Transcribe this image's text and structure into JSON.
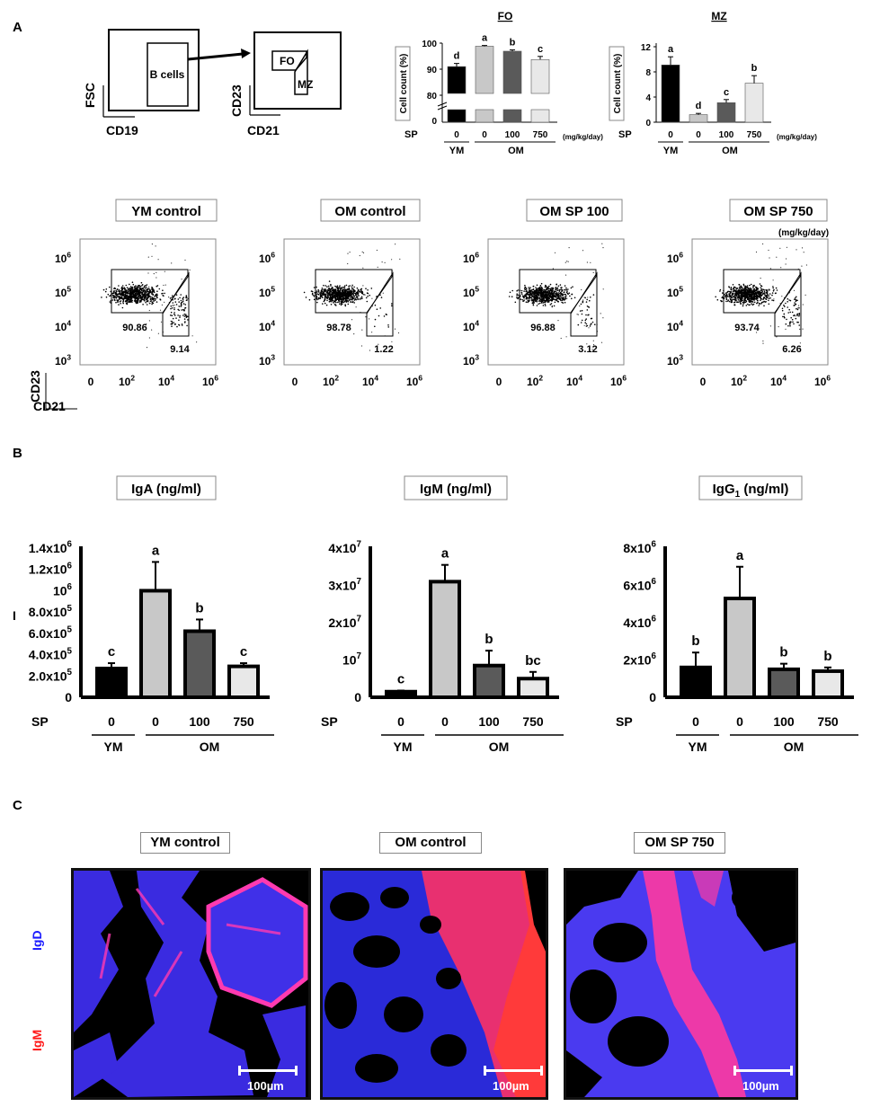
{
  "panels": {
    "a": "A",
    "b": "B",
    "c": "C"
  },
  "gating": {
    "plot1": {
      "box_label": "B cells",
      "y_axis": "FSC",
      "x_axis": "CD19"
    },
    "plot2": {
      "box_fo": "FO",
      "box_mz": "MZ",
      "y_axis": "CD23",
      "x_axis": "CD21"
    }
  },
  "fo_mz_common": {
    "ylabel": "Cell count (%)",
    "sp_label": "SP",
    "unit": "(mg/kg/day)",
    "group_ym": "YM",
    "group_om": "OM"
  },
  "chart_data": [
    {
      "type": "bar",
      "title": "FO",
      "ylabel": "Cell count (%)",
      "categories": [
        "0",
        "0",
        "100",
        "750"
      ],
      "values": [
        91,
        98.8,
        96.9,
        93.7
      ],
      "errors": [
        1.2,
        0.3,
        0.5,
        1.2
      ],
      "letters": [
        "d",
        "a",
        "b",
        "c"
      ],
      "yticks": [
        "0",
        "80",
        "90",
        "100"
      ],
      "ylim": [
        75,
        100
      ],
      "axis_break": true,
      "colors": [
        "#000000",
        "#c8c8c8",
        "#5a5a5a",
        "#e8e8e8"
      ]
    },
    {
      "type": "bar",
      "title": "MZ",
      "ylabel": "Cell count (%)",
      "categories": [
        "0",
        "0",
        "100",
        "750"
      ],
      "values": [
        9.1,
        1.2,
        3.1,
        6.2
      ],
      "errors": [
        1.3,
        0.2,
        0.5,
        1.2
      ],
      "letters": [
        "a",
        "d",
        "c",
        "b"
      ],
      "yticks": [
        "0",
        "4",
        "8",
        "12"
      ],
      "ylim": [
        0,
        12
      ],
      "colors": [
        "#000000",
        "#c8c8c8",
        "#5a5a5a",
        "#e8e8e8"
      ]
    },
    {
      "type": "bar",
      "title": "IgA (ng/ml)",
      "categories": [
        "0",
        "0",
        "100",
        "750"
      ],
      "values": [
        270000,
        1000000,
        620000,
        290000
      ],
      "errors": [
        50000,
        270000,
        110000,
        30000
      ],
      "letters": [
        "c",
        "a",
        "b",
        "c"
      ],
      "yticks": [
        {
          "v": 0,
          "base": "0",
          "exp": ""
        },
        {
          "v": 200000,
          "base": "2.0x10",
          "exp": "5"
        },
        {
          "v": 400000,
          "base": "4.0x10",
          "exp": "5"
        },
        {
          "v": 600000,
          "base": "6.0x10",
          "exp": "5"
        },
        {
          "v": 800000,
          "base": "8.0x10",
          "exp": "5"
        },
        {
          "v": 1000000,
          "base": "10",
          "exp": "6"
        },
        {
          "v": 1200000,
          "base": "1.2x10",
          "exp": "6"
        },
        {
          "v": 1400000,
          "base": "1.4x10",
          "exp": "6"
        }
      ],
      "ylim": [
        0,
        1400000
      ],
      "colors": [
        "#000000",
        "#c8c8c8",
        "#5a5a5a",
        "#e8e8e8"
      ]
    },
    {
      "type": "bar",
      "title": "IgM (ng/ml)",
      "categories": [
        "0",
        "0",
        "100",
        "750"
      ],
      "values": [
        1500000,
        31000000,
        8500000,
        5000000
      ],
      "errors": [
        300000,
        4500000,
        4000000,
        1800000
      ],
      "letters": [
        "c",
        "a",
        "b",
        "bc"
      ],
      "yticks": [
        {
          "v": 0,
          "base": "0",
          "exp": ""
        },
        {
          "v": 10000000,
          "base": "10",
          "exp": "7"
        },
        {
          "v": 20000000,
          "base": "2x10",
          "exp": "7"
        },
        {
          "v": 30000000,
          "base": "3x10",
          "exp": "7"
        },
        {
          "v": 40000000,
          "base": "4x10",
          "exp": "7"
        }
      ],
      "ylim": [
        0,
        40000000
      ],
      "colors": [
        "#000000",
        "#c8c8c8",
        "#5a5a5a",
        "#e8e8e8"
      ]
    },
    {
      "type": "bar",
      "title": "IgG",
      "title_sub": "1",
      "title_unit": " (ng/ml)",
      "categories": [
        "0",
        "0",
        "100",
        "750"
      ],
      "values": [
        1600000,
        5300000,
        1500000,
        1400000
      ],
      "errors": [
        800000,
        1700000,
        300000,
        200000
      ],
      "letters": [
        "b",
        "a",
        "b",
        "b"
      ],
      "yticks": [
        {
          "v": 0,
          "base": "0",
          "exp": ""
        },
        {
          "v": 2000000,
          "base": "2x10",
          "exp": "6"
        },
        {
          "v": 4000000,
          "base": "4x10",
          "exp": "6"
        },
        {
          "v": 6000000,
          "base": "6x10",
          "exp": "6"
        },
        {
          "v": 8000000,
          "base": "8x10",
          "exp": "6"
        }
      ],
      "ylim": [
        0,
        8000000
      ],
      "colors": [
        "#000000",
        "#c8c8c8",
        "#5a5a5a",
        "#e8e8e8"
      ]
    },
    {
      "type": "scatter",
      "title": "YM control",
      "gate_values": {
        "FO": "90.86",
        "MZ": "9.14"
      }
    },
    {
      "type": "scatter",
      "title": "OM control",
      "gate_values": {
        "FO": "98.78",
        "MZ": "1.22"
      }
    },
    {
      "type": "scatter",
      "title": "OM SP 100",
      "gate_values": {
        "FO": "96.88",
        "MZ": "3.12"
      }
    },
    {
      "type": "scatter",
      "title": "OM SP 750",
      "gate_values": {
        "FO": "93.74",
        "MZ": "6.26"
      }
    }
  ],
  "flow_common": {
    "unit": "(mg/kg/day)",
    "y_axis": "CD23",
    "x_axis": "CD21",
    "yticks": [
      {
        "base": "10",
        "exp": "6"
      },
      {
        "base": "10",
        "exp": "5"
      },
      {
        "base": "10",
        "exp": "4"
      },
      {
        "base": "10",
        "exp": "3"
      }
    ],
    "xticks": [
      {
        "base": "0",
        "exp": ""
      },
      {
        "base": "10",
        "exp": "2"
      },
      {
        "base": "10",
        "exp": "4"
      },
      {
        "base": "10",
        "exp": "6"
      }
    ]
  },
  "ig_common": {
    "sp_label": "SP",
    "group_ym": "YM",
    "group_om": "OM",
    "ig_side_marker": "I"
  },
  "micrographs": {
    "titles": [
      "YM control",
      "OM control",
      "OM SP 750"
    ],
    "scale_label": "100µm",
    "stain_igd": "IgD",
    "stain_igm": "IgM",
    "stain_igd_color": "#1a1aff",
    "stain_igm_color": "#ff1a1a"
  }
}
